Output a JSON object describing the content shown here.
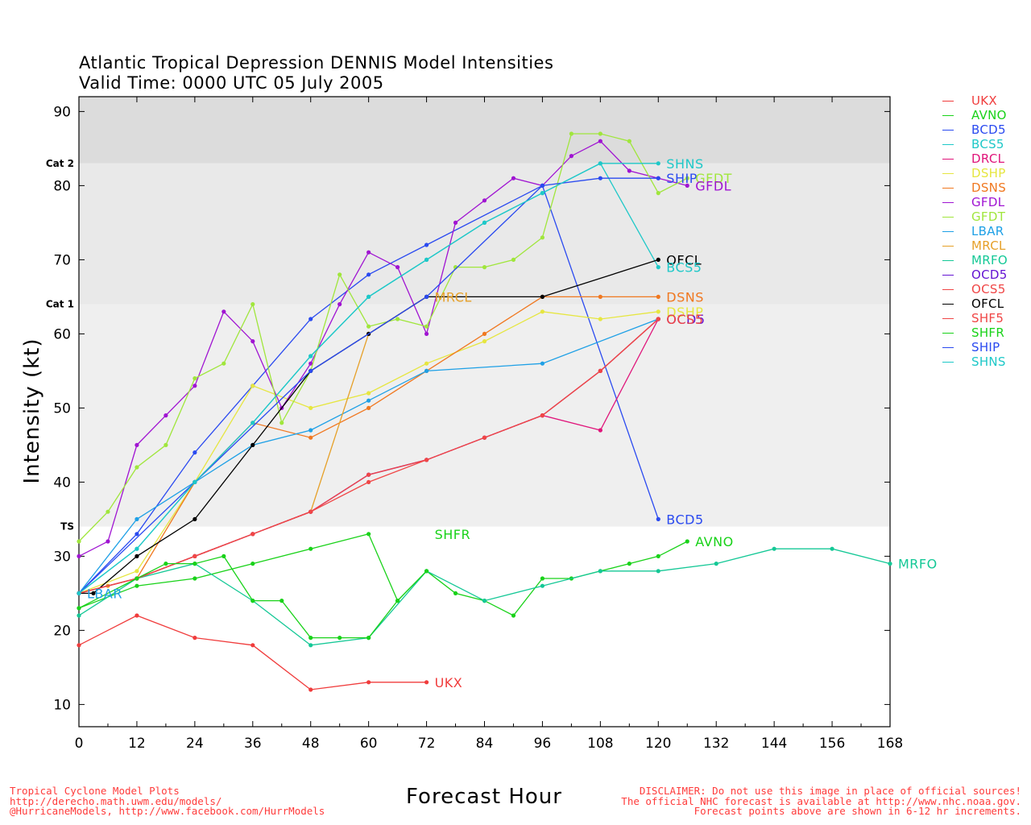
{
  "chart_data": {
    "type": "line",
    "title": "Atlantic Tropical Depression DENNIS Model Intensities",
    "subtitle": "Valid Time: 0000 UTC 05 July 2005",
    "xlabel": "Forecast Hour",
    "ylabel": "Intensity (kt)",
    "xlim": [
      0,
      168
    ],
    "ylim": [
      7,
      92
    ],
    "xticks": [
      0,
      12,
      24,
      36,
      48,
      60,
      72,
      84,
      96,
      108,
      120,
      132,
      144,
      156,
      168
    ],
    "yticks": [
      10,
      20,
      30,
      40,
      50,
      60,
      70,
      80,
      90
    ],
    "bands": [
      {
        "from": 7,
        "to": 34,
        "color": "#ffffff"
      },
      {
        "from": 34,
        "to": 64,
        "color": "#efefef"
      },
      {
        "from": 64,
        "to": 83,
        "color": "#e9e9e9"
      },
      {
        "from": 83,
        "to": 92,
        "color": "#dcdcdc"
      }
    ],
    "category_labels": [
      {
        "label": "TS",
        "value": 34
      },
      {
        "label": "Cat 1",
        "value": 64
      },
      {
        "label": "Cat 2",
        "value": 83
      }
    ],
    "legend_position": "right",
    "series": [
      {
        "name": "UKX",
        "color": "#f03c3c",
        "x": [
          0,
          12,
          24,
          36,
          48,
          60,
          72
        ],
        "y": [
          18,
          22,
          19,
          18,
          12,
          13,
          13
        ],
        "label": "UKX"
      },
      {
        "name": "AVNO",
        "color": "#19d219",
        "x": [
          0,
          12,
          24,
          36,
          48,
          60,
          66,
          72,
          78,
          84,
          90,
          96,
          102,
          108,
          114,
          120,
          126
        ],
        "y": [
          23,
          26,
          27,
          29,
          31,
          33,
          24,
          28,
          25,
          24,
          22,
          27,
          27,
          28,
          29,
          30,
          32
        ],
        "label": "AVNO"
      },
      {
        "name": "BCD5",
        "color": "#2a4af0",
        "x": [
          0,
          12,
          24,
          36,
          48,
          60,
          72,
          96,
          120
        ],
        "y": [
          25,
          33,
          44,
          53,
          62,
          68,
          72,
          80,
          35
        ],
        "label": "BCD5"
      },
      {
        "name": "BCS5",
        "color": "#1ec8c8",
        "x": [
          0,
          12,
          24,
          36,
          48,
          60,
          72,
          84,
          96,
          108,
          120
        ],
        "y": [
          25,
          31,
          40,
          48,
          57,
          65,
          70,
          75,
          79,
          83,
          69
        ],
        "label": "BCS5"
      },
      {
        "name": "DRCL",
        "color": "#e0147a",
        "x": [
          0,
          12,
          24,
          36,
          48,
          60,
          72,
          84,
          96,
          108,
          120
        ],
        "y": [
          25,
          27,
          30,
          33,
          36,
          41,
          43,
          46,
          49,
          47,
          62
        ],
        "label": ""
      },
      {
        "name": "DSHP",
        "color": "#e6e640",
        "x": [
          0,
          12,
          24,
          36,
          48,
          60,
          72,
          84,
          96,
          108,
          120
        ],
        "y": [
          25,
          28,
          40,
          53,
          50,
          52,
          56,
          59,
          63,
          62,
          63
        ],
        "label": "DSHP"
      },
      {
        "name": "DSNS",
        "color": "#f07820",
        "x": [
          0,
          12,
          24,
          36,
          48,
          60,
          72,
          84,
          96,
          108,
          120
        ],
        "y": [
          25,
          27,
          40,
          48,
          46,
          50,
          55,
          60,
          65,
          65,
          65
        ],
        "label": "DSNS"
      },
      {
        "name": "GFDL",
        "color": "#a014d2",
        "x": [
          0,
          6,
          12,
          18,
          24,
          30,
          36,
          42,
          48,
          54,
          60,
          66,
          72,
          78,
          84,
          90,
          96,
          102,
          108,
          114,
          120,
          126
        ],
        "y": [
          30,
          32,
          45,
          49,
          53,
          63,
          59,
          50,
          56,
          64,
          71,
          69,
          60,
          75,
          78,
          81,
          80,
          84,
          86,
          82,
          81,
          80
        ],
        "label": "GFDL"
      },
      {
        "name": "GFDT",
        "color": "#a0e63c",
        "x": [
          0,
          6,
          12,
          18,
          24,
          30,
          36,
          42,
          48,
          54,
          60,
          66,
          72,
          78,
          84,
          90,
          96,
          102,
          108,
          114,
          120,
          126
        ],
        "y": [
          32,
          36,
          42,
          45,
          54,
          56,
          64,
          48,
          55,
          68,
          61,
          62,
          61,
          69,
          69,
          70,
          73,
          87,
          87,
          86,
          79,
          81
        ],
        "label": "GFDT"
      },
      {
        "name": "LBAR",
        "color": "#1ea0e6",
        "x": [
          0,
          12,
          24,
          36,
          48,
          60,
          72,
          96,
          120
        ],
        "y": [
          25,
          35,
          40,
          45,
          47,
          51,
          55,
          56,
          62
        ],
        "label": "LBAR"
      },
      {
        "name": "MRCL",
        "color": "#e6a028",
        "x": [
          0,
          6,
          12,
          24,
          36,
          48,
          60,
          72
        ],
        "y": [
          25,
          26,
          27,
          30,
          33,
          36,
          60,
          65
        ],
        "label": "MRCL"
      },
      {
        "name": "MRFO",
        "color": "#14c896",
        "x": [
          0,
          12,
          24,
          36,
          48,
          60,
          72,
          84,
          96,
          108,
          120,
          132,
          144,
          156,
          168
        ],
        "y": [
          22,
          27,
          29,
          24,
          18,
          19,
          28,
          24,
          26,
          28,
          28,
          29,
          31,
          31,
          29
        ],
        "label": "MRFO"
      },
      {
        "name": "OCD5",
        "color": "#6414d2",
        "x": [
          0,
          12,
          24,
          36,
          48,
          60,
          72,
          84,
          96,
          108,
          120
        ],
        "y": [
          25,
          27,
          30,
          33,
          36,
          41,
          43,
          46,
          49,
          55,
          62
        ],
        "label": "OCD5"
      },
      {
        "name": "OCS5",
        "color": "#f04646",
        "x": [
          0,
          12,
          24,
          36,
          48,
          60,
          72,
          84,
          96,
          108,
          120
        ],
        "y": [
          25,
          27,
          30,
          33,
          36,
          40,
          43,
          46,
          49,
          55,
          62
        ],
        "label": "OCS5"
      },
      {
        "name": "OFCL",
        "color": "#000000",
        "x": [
          0,
          3,
          12,
          24,
          36,
          48,
          60,
          72,
          96,
          120
        ],
        "y": [
          25,
          25,
          30,
          35,
          45,
          55,
          60,
          65,
          65,
          70
        ],
        "label": "OFCL"
      },
      {
        "name": "SHF5",
        "color": "#f04646",
        "x": [
          0,
          12,
          24,
          36,
          48,
          60,
          72,
          84,
          96,
          108,
          120
        ],
        "y": [
          25,
          27,
          30,
          33,
          36,
          41,
          43,
          46,
          49,
          55,
          62
        ],
        "label": ""
      },
      {
        "name": "SHFR",
        "color": "#19d219",
        "x": [
          0,
          12,
          18,
          24,
          30,
          36,
          42,
          48,
          54,
          60,
          66,
          72
        ],
        "y": [
          23,
          27,
          29,
          29,
          30,
          24,
          24,
          19,
          19,
          19,
          24,
          28
        ],
        "label": "SHFR"
      },
      {
        "name": "SHIP",
        "color": "#2a4af0",
        "x": [
          0,
          24,
          48,
          72,
          96,
          108,
          120
        ],
        "y": [
          25,
          40,
          55,
          65,
          80,
          81,
          81
        ],
        "label": "SHIP"
      },
      {
        "name": "SHNS",
        "color": "#1ec8c8",
        "x": [
          0,
          12,
          24,
          36,
          48,
          60,
          72,
          84,
          96,
          108,
          120
        ],
        "y": [
          25,
          31,
          40,
          48,
          57,
          65,
          70,
          75,
          79,
          83,
          83
        ],
        "label": "SHNS"
      }
    ],
    "end_labels": [
      {
        "text": "UKX",
        "series": "UKX",
        "x": 72,
        "y": 13
      },
      {
        "text": "SHFR",
        "series": "SHFR",
        "x": 72,
        "y": 33
      },
      {
        "text": "AVNO",
        "series": "AVNO",
        "x": 126,
        "y": 32
      },
      {
        "text": "MRFO",
        "series": "MRFO",
        "x": 168,
        "y": 29
      },
      {
        "text": "BCD5",
        "series": "BCD5",
        "x": 120,
        "y": 35
      },
      {
        "text": "LBAR",
        "series": "LBAR",
        "x": 0,
        "y": 25
      },
      {
        "text": "MRCL",
        "series": "MRCL",
        "x": 72,
        "y": 65
      },
      {
        "text": "DSNS",
        "series": "DSNS",
        "x": 120,
        "y": 65
      },
      {
        "text": "DSHP",
        "series": "DSHP",
        "x": 120,
        "y": 63
      },
      {
        "text": "OCD5",
        "series": "OCD5",
        "x": 120,
        "y": 62
      },
      {
        "text": "OCS5",
        "series": "OCS5",
        "x": 120,
        "y": 62
      },
      {
        "text": "OFCL",
        "series": "OFCL",
        "x": 120,
        "y": 70
      },
      {
        "text": "BCS5",
        "series": "BCS5",
        "x": 120,
        "y": 69
      },
      {
        "text": "SHNS",
        "series": "SHNS",
        "x": 120,
        "y": 83
      },
      {
        "text": "SHIP",
        "series": "SHIP",
        "x": 120,
        "y": 81
      },
      {
        "text": "GFDT",
        "series": "GFDT",
        "x": 126,
        "y": 81
      },
      {
        "text": "GFDL",
        "series": "GFDL",
        "x": 126,
        "y": 80
      }
    ]
  },
  "footer": {
    "left_line1": "Tropical Cyclone Model Plots",
    "left_line2": "http://derecho.math.uwm.edu/models/",
    "left_line3": "@HurricaneModels, http://www.facebook.com/HurrModels",
    "right_line1": "DISCLAIMER: Do not use this image in place of official sources!",
    "right_line2": "The official NHC forecast is available at http://www.nhc.noaa.gov.",
    "right_line3": "Forecast points above are shown in 6-12 hr increments."
  }
}
